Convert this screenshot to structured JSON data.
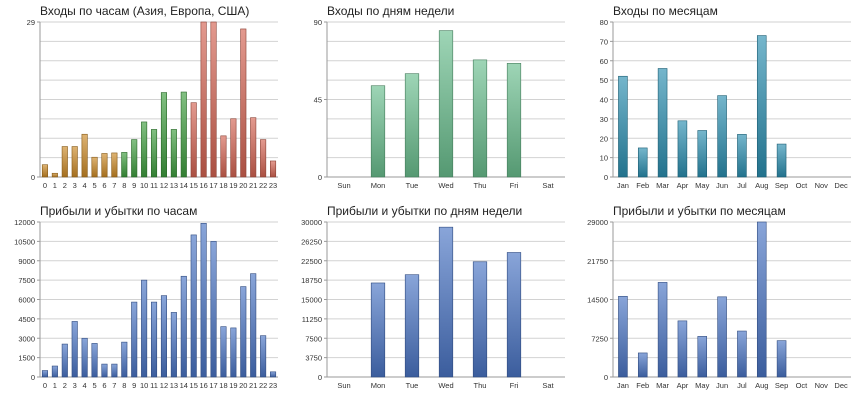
{
  "chart_data": [
    {
      "type": "bar",
      "title": "Входы по часам (Азия, Европа, США)",
      "categories": [
        "0",
        "1",
        "2",
        "3",
        "4",
        "5",
        "6",
        "7",
        "8",
        "9",
        "10",
        "11",
        "12",
        "13",
        "14",
        "15",
        "16",
        "17",
        "18",
        "19",
        "20",
        "21",
        "22",
        "23"
      ],
      "values": [
        2.3,
        0.7,
        5.7,
        5.7,
        8.0,
        3.7,
        4.4,
        4.5,
        4.6,
        7.0,
        10.3,
        8.9,
        15.8,
        8.9,
        15.9,
        13.9,
        29,
        29,
        7.7,
        10.9,
        27.7,
        11.1,
        7.0,
        3.0
      ],
      "yticks": [
        0,
        29
      ],
      "ylim": [
        0,
        29
      ],
      "grid": true,
      "colors": [
        "#cc8a26",
        "#cc8a26",
        "#cc8a26",
        "#cc8a26",
        "#cc8a26",
        "#cc8a26",
        "#cc8a26",
        "#cc8a26",
        "#3e9e3e",
        "#3e9e3e",
        "#3e9e3e",
        "#3e9e3e",
        "#3e9e3e",
        "#3e9e3e",
        "#3e9e3e",
        "#d46452",
        "#d46452",
        "#d46452",
        "#d46452",
        "#d46452",
        "#d46452",
        "#d46452",
        "#d46452",
        "#d46452"
      ]
    },
    {
      "type": "bar",
      "title": "Входы по дням недели",
      "categories": [
        "Sun",
        "Mon",
        "Tue",
        "Wed",
        "Thu",
        "Fri",
        "Sat"
      ],
      "values": [
        0,
        53,
        60,
        85,
        68,
        66,
        0
      ],
      "yticks": [
        0,
        45,
        90
      ],
      "ylim": [
        0,
        90
      ],
      "grid": true,
      "color": "#6abf8e"
    },
    {
      "type": "bar",
      "title": "Входы по месяцам",
      "categories": [
        "Jan",
        "Feb",
        "Mar",
        "Apr",
        "May",
        "Jun",
        "Jul",
        "Aug",
        "Sep",
        "Oct",
        "Nov",
        "Dec"
      ],
      "values": [
        52,
        15,
        56,
        29,
        24,
        42,
        22,
        73,
        17,
        0,
        0,
        0
      ],
      "yticks": [
        0,
        10,
        20,
        30,
        40,
        50,
        60,
        70,
        80
      ],
      "ylim": [
        0,
        80
      ],
      "grid": true,
      "color": "#2b8fb0"
    },
    {
      "type": "bar",
      "title": "Прибыли и убытки по часам",
      "categories": [
        "0",
        "1",
        "2",
        "3",
        "4",
        "5",
        "6",
        "7",
        "8",
        "9",
        "10",
        "11",
        "12",
        "13",
        "14",
        "15",
        "16",
        "17",
        "18",
        "19",
        "20",
        "21",
        "22",
        "23"
      ],
      "values": [
        500,
        850,
        2550,
        4300,
        3000,
        2600,
        1000,
        1000,
        2700,
        5800,
        7500,
        5800,
        6300,
        5000,
        7800,
        11000,
        11900,
        10500,
        3900,
        3800,
        7000,
        8000,
        3200,
        400
      ],
      "yticks": [
        0,
        1500,
        3000,
        4500,
        6000,
        7500,
        9000,
        10500,
        12000
      ],
      "ylim": [
        0,
        12000
      ],
      "grid": true,
      "color": "#4a74c4"
    },
    {
      "type": "bar",
      "title": "Прибыли и убытки по дням недели",
      "categories": [
        "Sun",
        "Mon",
        "Tue",
        "Wed",
        "Thu",
        "Fri",
        "Sat"
      ],
      "values": [
        0,
        18200,
        19800,
        29000,
        22300,
        24100,
        0
      ],
      "yticks": [
        0,
        3750,
        7500,
        11250,
        15000,
        18750,
        22500,
        26250,
        30000
      ],
      "ylim": [
        0,
        30000
      ],
      "grid": true,
      "color": "#4a74c4"
    },
    {
      "type": "bar",
      "title": "Прибыли и убытки по месяцам",
      "categories": [
        "Jan",
        "Feb",
        "Mar",
        "Apr",
        "May",
        "Jun",
        "Jul",
        "Aug",
        "Sep",
        "Oct",
        "Nov",
        "Dec"
      ],
      "values": [
        15100,
        4500,
        17700,
        10500,
        7600,
        15000,
        8600,
        29000,
        6800,
        0,
        0,
        0
      ],
      "yticks": [
        0,
        7250,
        14500,
        21750,
        29000
      ],
      "ylim": [
        0,
        29000
      ],
      "grid": true,
      "color": "#4a74c4"
    }
  ]
}
